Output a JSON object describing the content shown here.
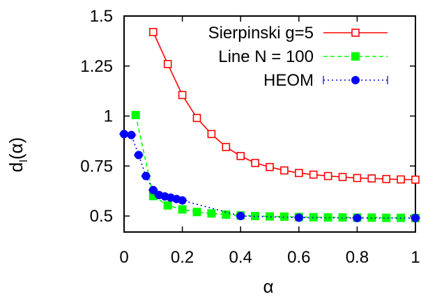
{
  "chart_data": {
    "type": "line",
    "xlabel": "α",
    "ylabel": "d",
    "ylabel_sub": "l",
    "ylabel_suffix": "(α)",
    "xlim": [
      0,
      1
    ],
    "ylim": [
      0.42,
      1.5
    ],
    "x_ticks": [
      0,
      0.2,
      0.4,
      0.6,
      0.8,
      1
    ],
    "x_tick_labels": [
      "0",
      "0.2",
      "0.4",
      "0.6",
      "0.8",
      "1"
    ],
    "y_ticks": [
      0.5,
      0.75,
      1,
      1.25,
      1.5
    ],
    "y_tick_labels": [
      "0.5",
      "0.75",
      "1",
      "1.25",
      "1.5"
    ],
    "grid": false,
    "legend_position": "top-right",
    "series": [
      {
        "name": "Sierpinski g=5",
        "color": "#ff0000",
        "marker": "open-square",
        "line": "solid",
        "x": [
          0.1,
          0.15,
          0.2,
          0.25,
          0.3,
          0.35,
          0.4,
          0.45,
          0.5,
          0.55,
          0.6,
          0.65,
          0.7,
          0.75,
          0.8,
          0.85,
          0.9,
          0.95,
          1.0
        ],
        "y": [
          1.42,
          1.26,
          1.105,
          0.99,
          0.91,
          0.845,
          0.8,
          0.765,
          0.745,
          0.728,
          0.715,
          0.707,
          0.7,
          0.695,
          0.69,
          0.688,
          0.685,
          0.683,
          0.682
        ]
      },
      {
        "name": "Line N = 100",
        "color": "#00ff00",
        "marker": "filled-square",
        "line": "dashed",
        "x": [
          0.04,
          0.1,
          0.15,
          0.2,
          0.25,
          0.3,
          0.35,
          0.4,
          0.45,
          0.5,
          0.55,
          0.6,
          0.65,
          0.7,
          0.75,
          0.8,
          0.85,
          0.9,
          0.95,
          1.0
        ],
        "y": [
          1.005,
          0.6,
          0.553,
          0.533,
          0.52,
          0.513,
          0.507,
          0.503,
          0.5,
          0.498,
          0.497,
          0.495,
          0.494,
          0.493,
          0.493,
          0.492,
          0.492,
          0.491,
          0.491,
          0.49
        ]
      },
      {
        "name": "HEOM",
        "color": "#0000ff",
        "marker": "filled-circle",
        "line": "dotted",
        "x": [
          0.0,
          0.025,
          0.05,
          0.075,
          0.1,
          0.12,
          0.14,
          0.16,
          0.18,
          0.2,
          0.4,
          0.6,
          0.8,
          1.0
        ],
        "y": [
          0.91,
          0.905,
          0.805,
          0.7,
          0.63,
          0.605,
          0.598,
          0.592,
          0.585,
          0.578,
          0.5,
          0.492,
          0.49,
          0.49
        ]
      }
    ]
  }
}
